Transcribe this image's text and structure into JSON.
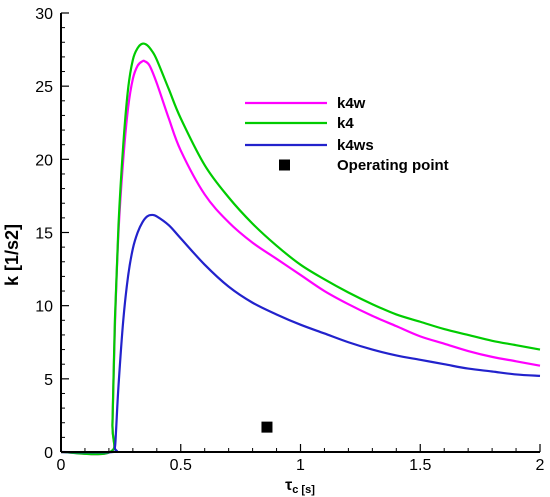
{
  "chart_data": {
    "type": "line",
    "xlabel": "τ",
    "xlabel_sub": "c [s]",
    "ylabel": "k [1/s2]",
    "xlim": [
      0,
      2
    ],
    "ylim": [
      0,
      30
    ],
    "xticks": [
      0,
      0.5,
      1,
      1.5,
      2
    ],
    "xtick_labels": [
      "0",
      "0.5",
      "1",
      "1.5",
      "2"
    ],
    "yticks": [
      0,
      5,
      10,
      15,
      20,
      25,
      30
    ],
    "ytick_labels": [
      "0",
      "5",
      "10",
      "15",
      "20",
      "25",
      "30"
    ],
    "grid": false,
    "legend_position": "upper-right",
    "series": [
      {
        "name": "k4w",
        "color": "#ff00ff",
        "x": [
          0,
          0.205,
          0.215,
          0.225,
          0.24,
          0.26,
          0.28,
          0.3,
          0.32,
          0.34,
          0.35,
          0.37,
          0.4,
          0.45,
          0.5,
          0.6,
          0.7,
          0.8,
          0.9,
          1.0,
          1.1,
          1.2,
          1.3,
          1.4,
          1.5,
          1.6,
          1.7,
          1.8,
          1.9,
          2.0
        ],
        "y": [
          0,
          0,
          2.0,
          8.5,
          15.0,
          20.0,
          23.5,
          25.5,
          26.4,
          26.7,
          26.7,
          26.4,
          25.2,
          22.8,
          20.6,
          17.6,
          15.7,
          14.3,
          13.2,
          12.1,
          11.0,
          10.1,
          9.3,
          8.6,
          7.9,
          7.4,
          6.9,
          6.5,
          6.2,
          5.9
        ]
      },
      {
        "name": "k4",
        "color": "#00cc00",
        "x": [
          0,
          0.205,
          0.215,
          0.225,
          0.24,
          0.26,
          0.28,
          0.3,
          0.32,
          0.34,
          0.36,
          0.38,
          0.4,
          0.45,
          0.5,
          0.6,
          0.7,
          0.8,
          0.9,
          1.0,
          1.1,
          1.2,
          1.3,
          1.4,
          1.5,
          1.6,
          1.7,
          1.8,
          1.9,
          2.0
        ],
        "y": [
          0,
          0,
          2.0,
          9.0,
          15.5,
          21.0,
          24.8,
          26.8,
          27.6,
          27.9,
          27.8,
          27.4,
          26.8,
          24.8,
          22.8,
          19.6,
          17.4,
          15.6,
          14.1,
          12.8,
          11.8,
          10.9,
          10.1,
          9.4,
          8.9,
          8.4,
          8.0,
          7.6,
          7.3,
          7.0
        ]
      },
      {
        "name": "k4ws",
        "color": "#2222cc",
        "x": [
          0,
          0.215,
          0.225,
          0.23,
          0.24,
          0.26,
          0.28,
          0.3,
          0.32,
          0.34,
          0.36,
          0.38,
          0.4,
          0.45,
          0.5,
          0.6,
          0.7,
          0.8,
          0.9,
          1.0,
          1.1,
          1.2,
          1.3,
          1.4,
          1.5,
          1.6,
          1.7,
          1.8,
          1.9,
          2.0
        ],
        "y": [
          0,
          0,
          0.3,
          1.5,
          4.5,
          9.0,
          12.0,
          13.9,
          15.0,
          15.7,
          16.1,
          16.2,
          16.1,
          15.5,
          14.6,
          12.8,
          11.3,
          10.2,
          9.4,
          8.7,
          8.1,
          7.5,
          7.0,
          6.6,
          6.3,
          6.0,
          5.7,
          5.5,
          5.3,
          5.2
        ]
      }
    ],
    "points": [
      {
        "name": "Operating point",
        "x": 0.86,
        "y": 1.7,
        "color": "#000000",
        "marker": "square"
      }
    ]
  }
}
